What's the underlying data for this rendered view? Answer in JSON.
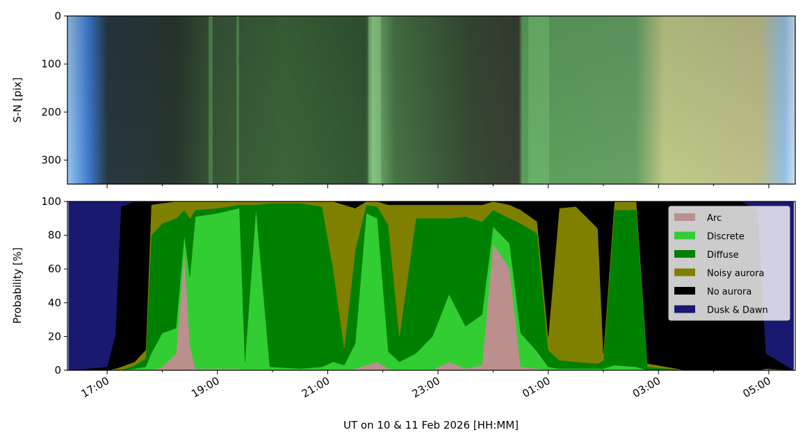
{
  "chart_data": [
    {
      "type": "image",
      "ylabel": "S-N [pix]",
      "ylim": [
        350,
        0
      ],
      "yticks": [
        0,
        100,
        200,
        300
      ],
      "xlim": [
        16.28,
        29.48
      ],
      "xticks": [
        17,
        19,
        21,
        23,
        25,
        27,
        29
      ],
      "xminorticks": [
        18,
        20,
        22,
        24,
        26,
        28
      ]
    },
    {
      "type": "stacked_area",
      "ylabel": "Probability [%]",
      "xlabel": "UT on 10 & 11 Feb 2026 [HH:MM]",
      "xlim": [
        16.28,
        29.48
      ],
      "ylim": [
        0,
        100
      ],
      "yticks": [
        0,
        20,
        40,
        60,
        80,
        100
      ],
      "xticks": [
        {
          "value": 17,
          "label": "17:00"
        },
        {
          "value": 19,
          "label": "19:00"
        },
        {
          "value": 21,
          "label": "21:00"
        },
        {
          "value": 23,
          "label": "23:00"
        },
        {
          "value": 25,
          "label": "01:00"
        },
        {
          "value": 27,
          "label": "03:00"
        },
        {
          "value": 29,
          "label": "05:00"
        }
      ],
      "xminorticks": [
        18,
        20,
        22,
        24,
        26,
        28
      ],
      "legend": "upper right",
      "x": [
        16.3,
        17.0,
        17.15,
        17.25,
        17.5,
        17.7,
        17.8,
        18.0,
        18.25,
        18.4,
        18.5,
        18.6,
        19.0,
        19.4,
        19.5,
        19.7,
        19.95,
        20.5,
        20.9,
        21.1,
        21.3,
        21.5,
        21.7,
        21.9,
        22.1,
        22.3,
        22.6,
        22.9,
        23.2,
        23.5,
        23.8,
        24.0,
        24.3,
        24.5,
        24.8,
        25.0,
        25.2,
        25.5,
        25.9,
        26.0,
        26.2,
        26.6,
        26.8,
        27.5,
        28.5,
        28.8,
        28.95,
        29.45
      ],
      "series": [
        {
          "name": "Arc",
          "color": "#bc8f8f",
          "values": [
            0,
            0,
            0,
            0,
            0,
            0,
            0,
            2,
            10,
            70,
            15,
            1,
            1,
            1,
            0,
            0,
            0,
            0,
            0,
            0,
            0,
            1,
            3,
            5,
            1,
            0,
            0,
            0,
            5,
            1,
            3,
            75,
            60,
            2,
            1,
            0,
            0,
            0,
            0,
            0,
            0,
            0,
            0,
            0,
            0,
            0,
            0,
            0
          ]
        },
        {
          "name": "Discrete",
          "color": "#32cd32",
          "values": [
            0,
            0,
            0,
            0,
            1,
            2,
            10,
            20,
            15,
            10,
            40,
            90,
            92,
            95,
            5,
            96,
            2,
            1,
            2,
            5,
            3,
            15,
            90,
            85,
            10,
            5,
            10,
            20,
            40,
            25,
            30,
            10,
            15,
            20,
            10,
            2,
            1,
            1,
            1,
            1,
            3,
            2,
            0,
            0,
            0,
            0,
            0,
            0
          ]
        },
        {
          "name": "Diffuse",
          "color": "#008000",
          "values": [
            0,
            0,
            0,
            0,
            2,
            5,
            70,
            65,
            65,
            15,
            35,
            4,
            3,
            2,
            93,
            2,
            97,
            98,
            95,
            55,
            10,
            55,
            5,
            7,
            75,
            15,
            80,
            70,
            45,
            65,
            55,
            10,
            15,
            65,
            70,
            10,
            5,
            4,
            3,
            5,
            92,
            93,
            2,
            0,
            0,
            0,
            0,
            0
          ]
        },
        {
          "name": "Noisy aurora",
          "color": "#808000",
          "values": [
            0,
            0,
            1,
            2,
            2,
            5,
            18,
            12,
            10,
            5,
            10,
            5,
            4,
            2,
            2,
            2,
            1,
            1,
            3,
            40,
            85,
            25,
            2,
            3,
            12,
            78,
            8,
            8,
            8,
            7,
            10,
            5,
            8,
            8,
            7,
            8,
            90,
            92,
            80,
            4,
            5,
            5,
            2,
            0,
            0,
            0,
            1,
            0
          ]
        },
        {
          "name": "No aurora",
          "color": "#000000",
          "values": [
            0,
            2,
            20,
            95,
            95,
            88,
            2,
            1,
            0,
            0,
            0,
            0,
            0,
            0,
            0,
            0,
            0,
            0,
            0,
            0,
            2,
            4,
            0,
            0,
            2,
            2,
            2,
            2,
            2,
            2,
            2,
            0,
            2,
            5,
            12,
            80,
            4,
            3,
            16,
            90,
            0,
            0,
            96,
            100,
            100,
            95,
            9,
            0
          ]
        },
        {
          "name": "Dusk & Dawn",
          "color": "#191970",
          "values": [
            100,
            98,
            79,
            3,
            0,
            0,
            0,
            0,
            0,
            0,
            0,
            0,
            0,
            0,
            0,
            0,
            0,
            0,
            0,
            0,
            0,
            0,
            0,
            0,
            0,
            0,
            0,
            0,
            0,
            0,
            0,
            0,
            0,
            0,
            0,
            0,
            0,
            0,
            0,
            0,
            0,
            0,
            0,
            0,
            0,
            5,
            90,
            100
          ]
        }
      ]
    }
  ]
}
